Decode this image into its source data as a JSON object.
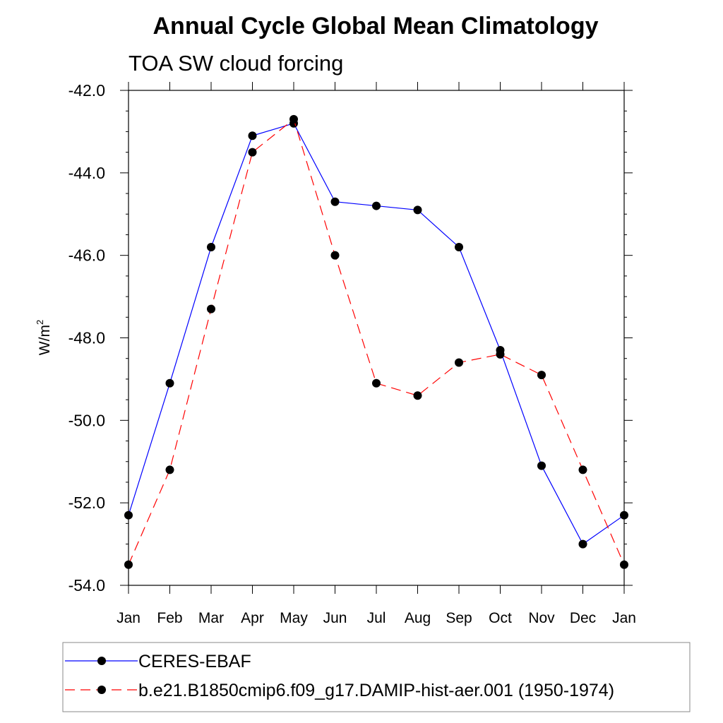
{
  "chart_data": {
    "type": "line",
    "title": "Annual Cycle Global Mean Climatology",
    "subtitle": "TOA SW cloud forcing",
    "ylabel": "W/m",
    "ylabel_sup": "2",
    "ylim": [
      -54.0,
      -42.0
    ],
    "yticks": [
      -42.0,
      -44.0,
      -46.0,
      -48.0,
      -50.0,
      -52.0,
      -54.0
    ],
    "ytick_labels": [
      "-42.0",
      "-44.0",
      "-46.0",
      "-48.0",
      "-50.0",
      "-52.0",
      "-54.0"
    ],
    "categories": [
      "Jan",
      "Feb",
      "Mar",
      "Apr",
      "May",
      "Jun",
      "Jul",
      "Aug",
      "Sep",
      "Oct",
      "Nov",
      "Dec",
      "Jan"
    ],
    "grid": false,
    "legend_position": "bottom",
    "series": [
      {
        "name": "CERES-EBAF",
        "color": "#0000ff",
        "style": "solid",
        "values": [
          -52.3,
          -49.1,
          -45.8,
          -43.1,
          -42.8,
          -44.7,
          -44.8,
          -44.9,
          -45.8,
          -48.3,
          -51.1,
          -53.0,
          -52.3
        ]
      },
      {
        "name": "b.e21.B1850cmip6.f09_g17.DAMIP-hist-aer.001 (1950-1974)",
        "color": "#ff0000",
        "style": "dashed",
        "values": [
          -53.5,
          -51.2,
          -47.3,
          -43.5,
          -42.7,
          -46.0,
          -49.1,
          -49.4,
          -48.6,
          -48.4,
          -48.9,
          -51.2,
          -53.5
        ]
      }
    ]
  }
}
